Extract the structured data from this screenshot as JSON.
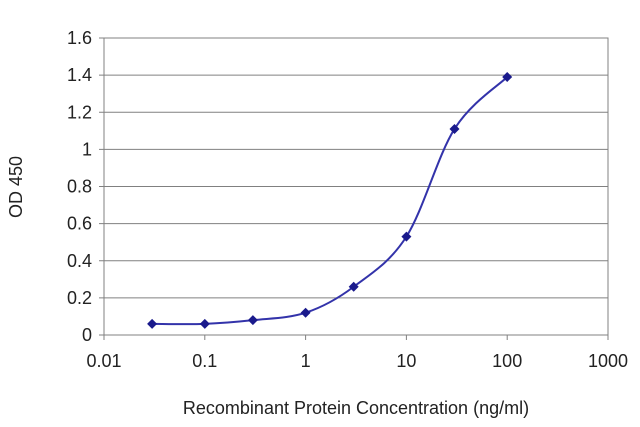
{
  "chart_data": {
    "type": "line",
    "xlabel": "Recombinant Protein Concentration (ng/ml)",
    "ylabel": "OD 450",
    "x_scale": "log",
    "xlim": [
      0.01,
      1000
    ],
    "ylim": [
      0,
      1.6
    ],
    "x_ticks": [
      0.01,
      0.1,
      1,
      10,
      100,
      1000
    ],
    "x_tick_labels": [
      "0.01",
      "0.1",
      "1",
      "10",
      "100",
      "1000"
    ],
    "y_ticks": [
      0,
      0.2,
      0.4,
      0.6,
      0.8,
      1,
      1.2,
      1.4,
      1.6
    ],
    "y_tick_labels": [
      "0",
      "0.2",
      "0.4",
      "0.6",
      "0.8",
      "1",
      "1.2",
      "1.4",
      "1.6"
    ],
    "grid": "horizontal",
    "legend": "none",
    "series": [
      {
        "x": [
          0.03,
          0.1,
          0.3,
          1,
          3,
          10,
          30,
          100
        ],
        "y": [
          0.06,
          0.06,
          0.08,
          0.12,
          0.26,
          0.53,
          1.11,
          1.39
        ]
      }
    ],
    "colors": {
      "line": "#3333aa",
      "marker": "#1a1a8c",
      "grid": "#808080",
      "frame": "#808080"
    }
  }
}
